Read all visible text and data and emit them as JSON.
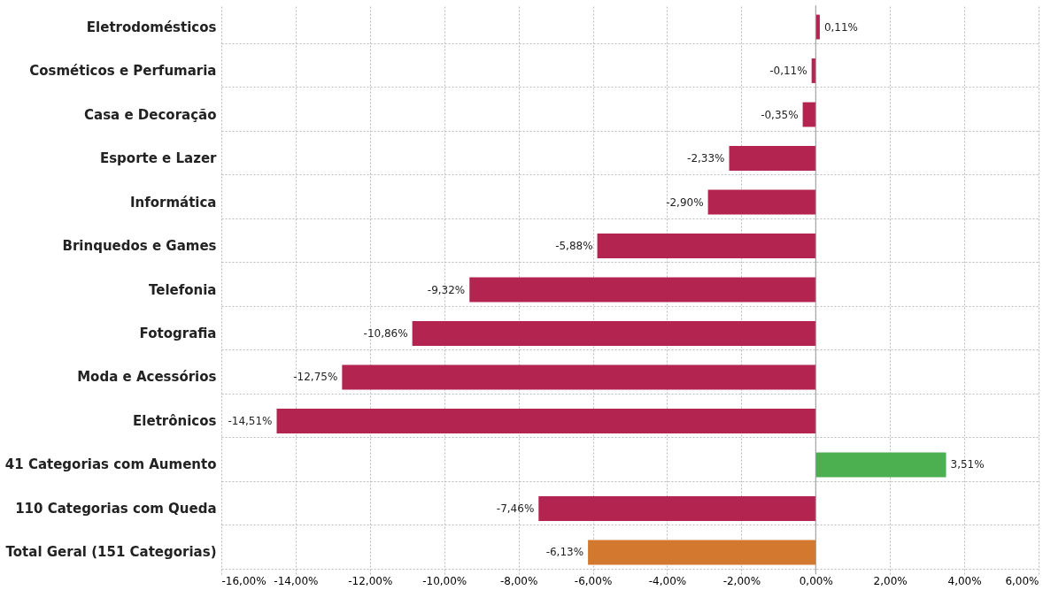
{
  "chart_data": {
    "type": "bar",
    "orientation": "horizontal",
    "categories": [
      "Eletrodomésticos",
      "Cosméticos e Perfumaria",
      "Casa e Decoração",
      "Esporte e Lazer",
      "Informática",
      "Brinquedos e Games",
      "Telefonia",
      "Fotografia",
      "Moda e Acessórios",
      "Eletrônicos",
      "41 Categorias com Aumento",
      "110 Categorias com Queda",
      "Total Geral (151 Categorias)"
    ],
    "values": [
      0.11,
      -0.11,
      -0.35,
      -2.33,
      -2.9,
      -5.88,
      -9.32,
      -10.86,
      -12.75,
      -14.51,
      3.51,
      -7.46,
      -6.13
    ],
    "value_labels": [
      "0,11%",
      "-0,11%",
      "-0,35%",
      "-2,33%",
      "-2,90%",
      "-5,88%",
      "-9,32%",
      "-10,86%",
      "-12,75%",
      "-14,51%",
      "3,51%",
      "-7,46%",
      "-6,13%"
    ],
    "colors": [
      "#b32451",
      "#b32451",
      "#b32451",
      "#b32451",
      "#b32451",
      "#b32451",
      "#b32451",
      "#b32451",
      "#b32451",
      "#b32451",
      "#4caf50",
      "#b32451",
      "#d2782f"
    ],
    "xlim": [
      -16,
      6
    ],
    "xticks": [
      {
        "value": -16,
        "label": "-16,00%"
      },
      {
        "value": -14,
        "label": "-14,00%"
      },
      {
        "value": -12,
        "label": "-12,00%"
      },
      {
        "value": -10,
        "label": "-10,00%"
      },
      {
        "value": -8,
        "label": "-8,00%"
      },
      {
        "value": -6,
        "label": "-6,00%"
      },
      {
        "value": -4,
        "label": "-4,00%"
      },
      {
        "value": -2,
        "label": "-2,00%"
      },
      {
        "value": 0,
        "label": "0,00%"
      },
      {
        "value": 2,
        "label": "2,00%"
      },
      {
        "value": 4,
        "label": "4,00%"
      },
      {
        "value": 6,
        "label": "6,00%"
      }
    ],
    "grid": true
  }
}
